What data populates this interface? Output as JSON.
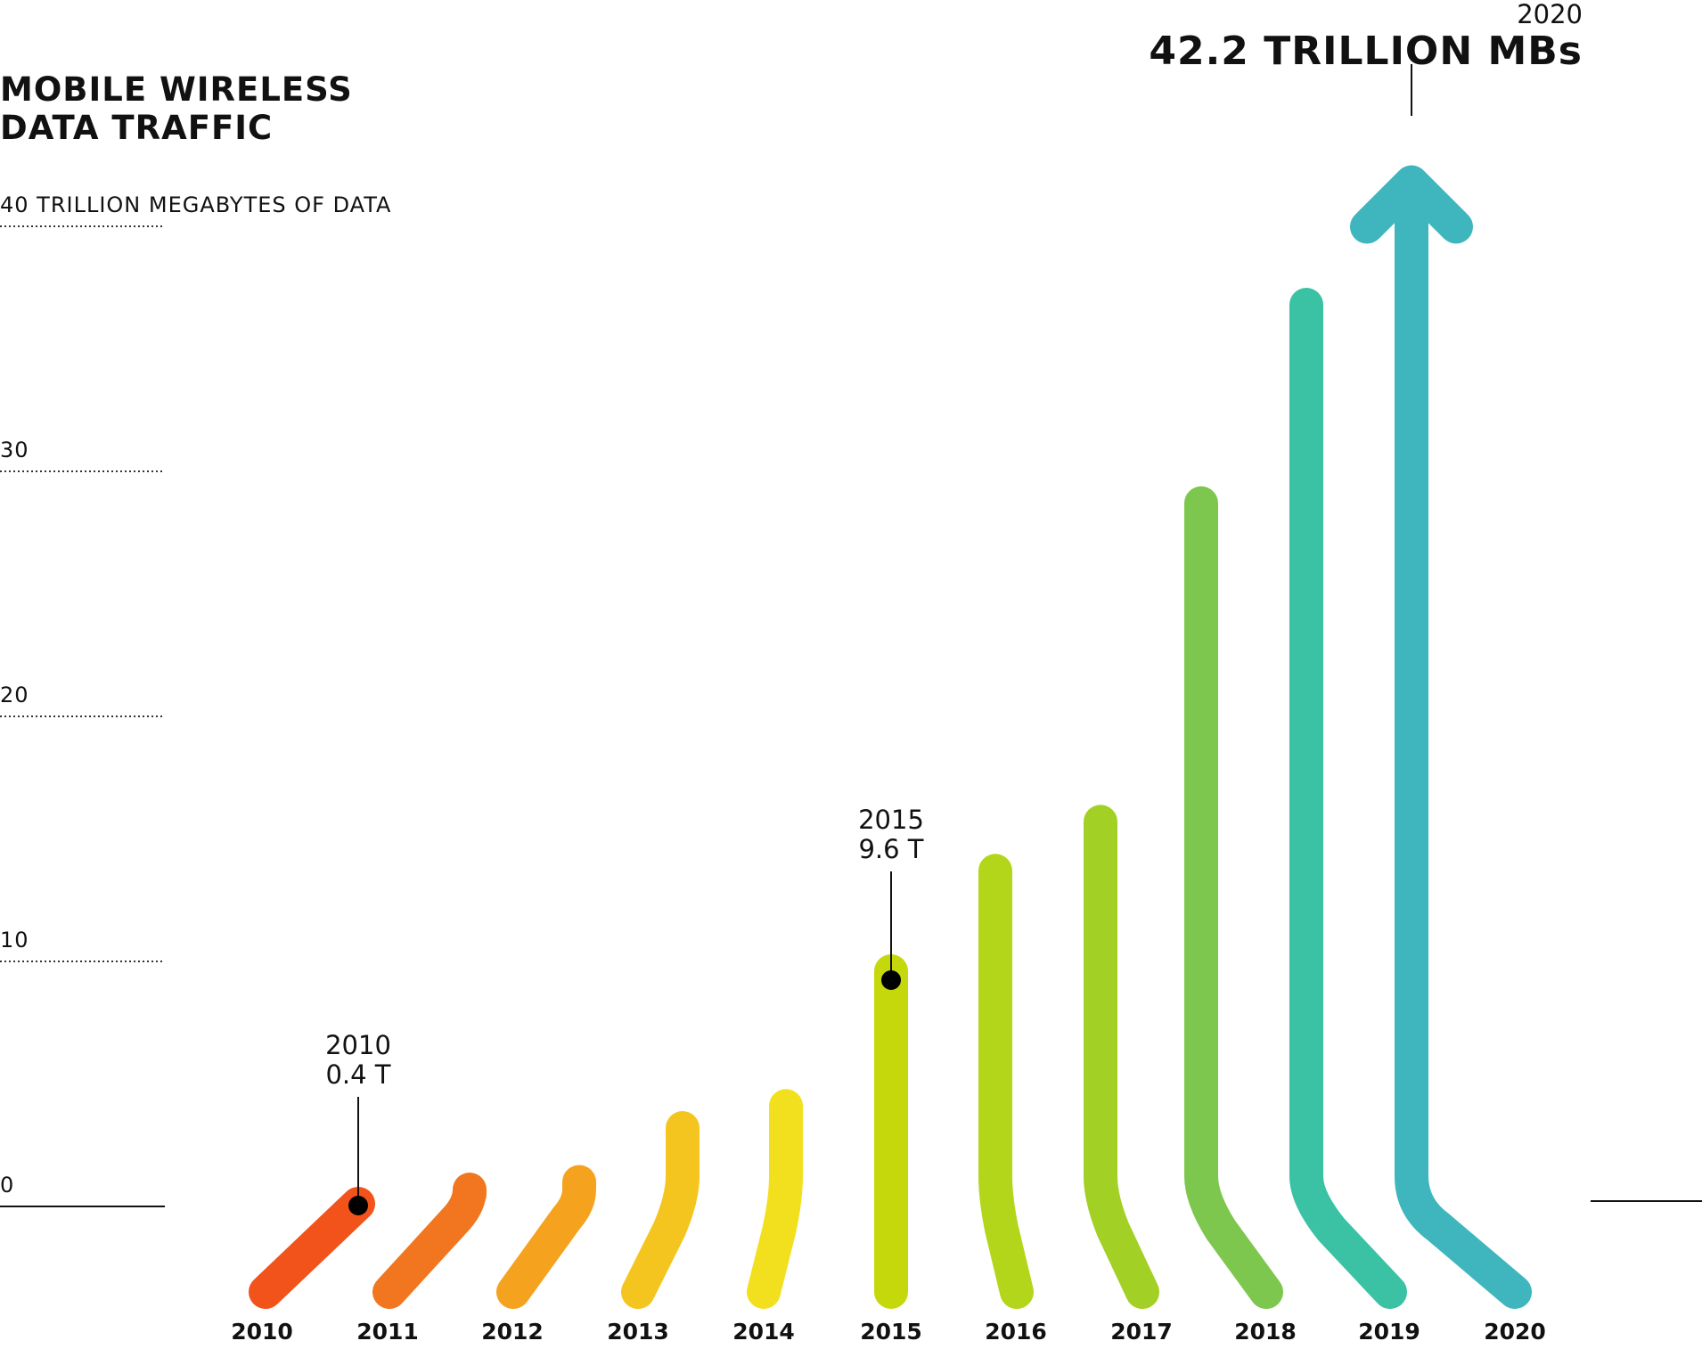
{
  "chart_data": {
    "type": "line",
    "title": [
      "MOBILE WIRELESS",
      "DATA TRAFFIC"
    ],
    "ylabel": "TRILLION MEGABYTES OF DATA",
    "yticks": [
      {
        "value": 0,
        "label": "0"
      },
      {
        "value": 10,
        "label": "10"
      },
      {
        "value": 20,
        "label": "20"
      },
      {
        "value": 30,
        "label": "30"
      },
      {
        "value": 40,
        "label": "40 TRILLION MEGABYTES OF DATA"
      }
    ],
    "ylim": [
      0,
      40
    ],
    "categories": [
      "2010",
      "2011",
      "2012",
      "2013",
      "2014",
      "2015",
      "2016",
      "2017",
      "2018",
      "2019",
      "2020"
    ],
    "values": [
      0.4,
      0.5,
      1.0,
      3.2,
      4.1,
      9.6,
      13.7,
      15.7,
      28.7,
      36.8,
      42.2
    ],
    "colors": [
      "#f2531a",
      "#f27620",
      "#f5a21e",
      "#f5c51f",
      "#f2e01e",
      "#c5d80c",
      "#b3d61a",
      "#a3d024",
      "#7ec74e",
      "#3bc2a5",
      "#3fb6bd"
    ],
    "grid": "dotted",
    "annotations": [
      {
        "category": "2010",
        "lines": [
          "2010",
          "0.4 T"
        ]
      },
      {
        "category": "2015",
        "lines": [
          "2015",
          "9.6 T"
        ]
      },
      {
        "category": "2020",
        "lines": [
          "2020",
          "42.2 TRILLION MBs"
        ]
      }
    ]
  }
}
